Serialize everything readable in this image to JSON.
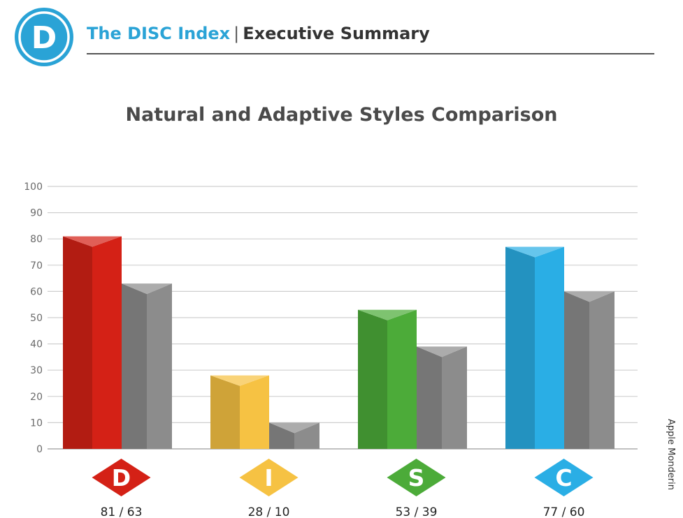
{
  "header": {
    "logo_letter": "D",
    "brand": "The DISC Index",
    "separator": "|",
    "subtitle": "Executive Summary"
  },
  "side_text": "Apple Monderin",
  "chart_data": {
    "type": "bar",
    "title": "Natural and Adaptive Styles Comparison",
    "categories": [
      "D",
      "I",
      "S",
      "C"
    ],
    "series": [
      {
        "values": [
          81,
          28,
          53,
          77
        ]
      },
      {
        "values": [
          63,
          10,
          39,
          60
        ]
      }
    ],
    "category_colors": [
      "#d42116",
      "#f6c243",
      "#4cab39",
      "#2aaee5"
    ],
    "adaptive_color": "#8c8c8c",
    "value_labels": [
      "81 / 63",
      "28 / 10",
      "53 / 39",
      "77 / 60"
    ],
    "yticks": [
      0,
      10,
      20,
      30,
      40,
      50,
      60,
      70,
      80,
      90,
      100
    ],
    "ylim": [
      0,
      100
    ],
    "grid": true,
    "xlabel": "",
    "ylabel": ""
  }
}
